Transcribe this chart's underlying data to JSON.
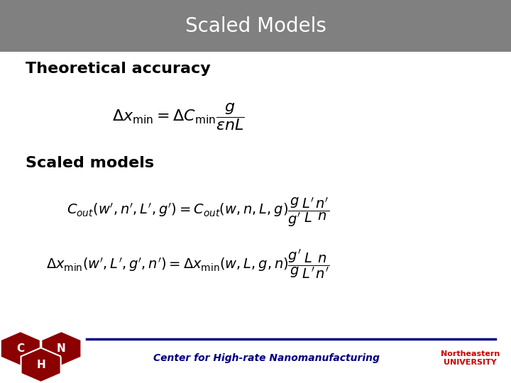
{
  "title": "Scaled Models",
  "title_bg_color": "#808080",
  "title_text_color": "#ffffff",
  "bg_color": "#ffffff",
  "section1_label": "Theoretical accuracy",
  "section2_label": "Scaled models",
  "eq1": "\\Delta x_{\\min} = \\Delta C_{\\min} \\frac{g}{\\varepsilon n L}",
  "eq2": "C_{out}(w', n', L', g') = C_{out}(w, n, L, g)\\frac{g}{g'} \\frac{L'}{L} \\frac{n'}{n}",
  "eq3": "\\Delta x_{\\min}(w', L', g', n') = \\Delta x_{\\min}(w, L, g, n)\\frac{g'}{g} \\frac{L}{L'} \\frac{n}{n'}",
  "footer_text": "Center for High-rate Nanomanufacturing",
  "footer_line_color": "#000080",
  "label_fontsize": 16,
  "eq_fontsize": 14,
  "title_fontsize": 20
}
